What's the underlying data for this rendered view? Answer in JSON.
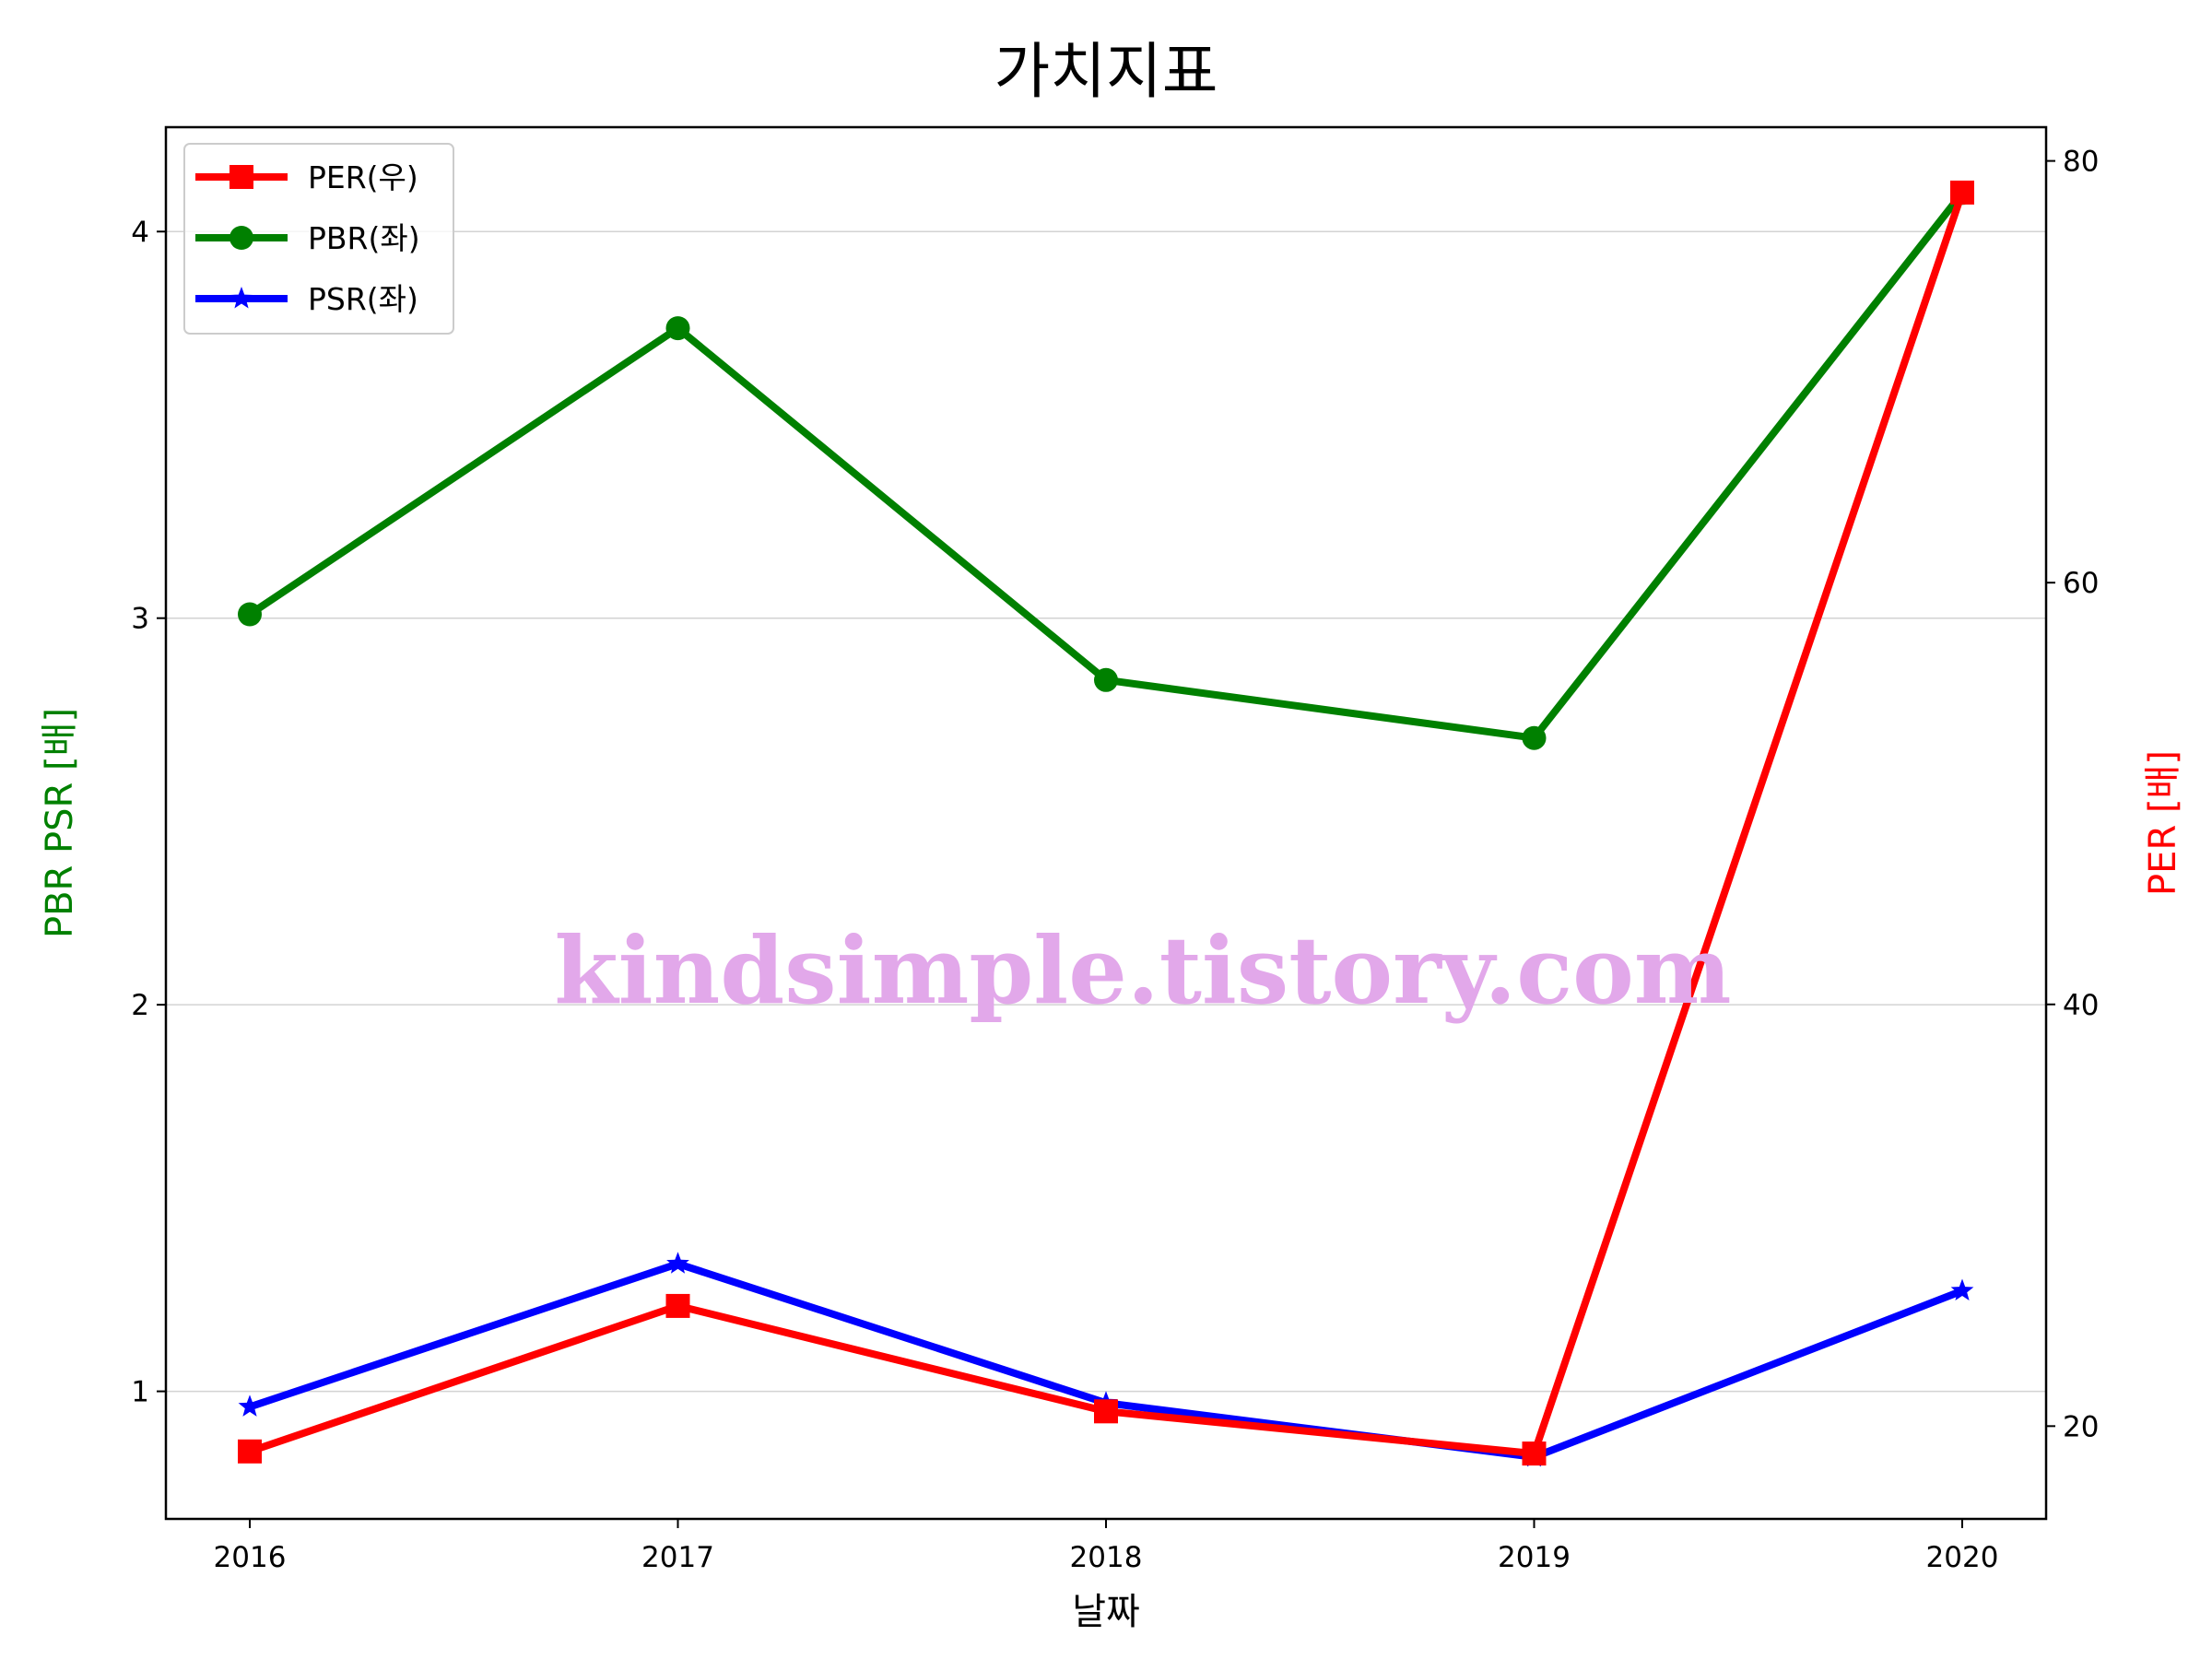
{
  "chart_data": {
    "type": "line",
    "title": "가치지표",
    "xlabel": "날짜",
    "ylabel_left": "PBR PSR [배]",
    "ylabel_right": "PER [배]",
    "categories": [
      "2016",
      "2017",
      "2018",
      "2019",
      "2020"
    ],
    "ylim_left": [
      0.67,
      4.27
    ],
    "ylim_right": [
      15.6,
      81.6
    ],
    "yticks_left": [
      "1",
      "2",
      "3",
      "4"
    ],
    "yticks_right": [
      "20",
      "40",
      "60",
      "80"
    ],
    "grid": true,
    "legend_position": "top-left",
    "watermark": "kindsimple.tistory.com",
    "series": [
      {
        "name": "PER(우)",
        "axis": "right",
        "color": "#ff0000",
        "marker": "square",
        "values": [
          18.8,
          25.7,
          20.7,
          18.7,
          78.5
        ]
      },
      {
        "name": "PBR(좌)",
        "axis": "left",
        "color": "#008000",
        "marker": "circle",
        "values": [
          3.01,
          3.75,
          2.84,
          2.69,
          4.1
        ]
      },
      {
        "name": "PSR(좌)",
        "axis": "left",
        "color": "#0000ff",
        "marker": "star",
        "values": [
          0.96,
          1.33,
          0.97,
          0.83,
          1.26
        ]
      }
    ]
  }
}
